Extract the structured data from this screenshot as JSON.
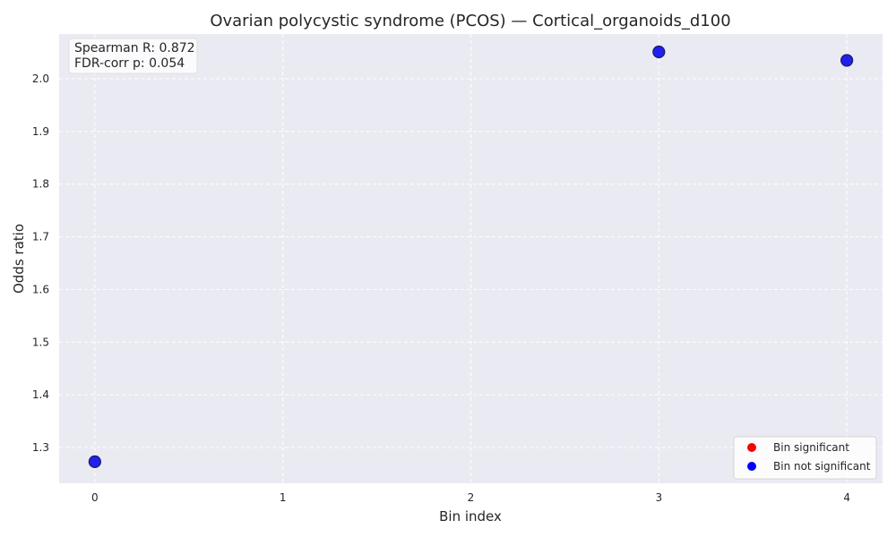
{
  "chart_data": {
    "type": "scatter",
    "title": "Ovarian polycystic syndrome (PCOS) — Cortical_organoids_d100",
    "xlabel": "Bin index",
    "ylabel": "Odds ratio",
    "xlim": [
      -0.19,
      4.19
    ],
    "ylim": [
      1.232,
      2.085
    ],
    "xticks": [
      0,
      1,
      2,
      3,
      4
    ],
    "yticks": [
      1.3,
      1.4,
      1.5,
      1.6,
      1.7,
      1.8,
      1.9,
      2.0
    ],
    "grid": true,
    "points": [
      {
        "x": 0,
        "y": 1.273,
        "significant": false
      },
      {
        "x": 3,
        "y": 2.051,
        "significant": false
      },
      {
        "x": 4,
        "y": 2.035,
        "significant": false
      }
    ],
    "annotation": [
      "Spearman R: 0.872",
      "FDR-corr p: 0.054"
    ],
    "legend": {
      "position": "lower-right",
      "entries": [
        {
          "label": "Bin significant",
          "color": "#ff0000"
        },
        {
          "label": "Bin not significant",
          "color": "#0000ff"
        }
      ]
    },
    "colors": {
      "plot_background": "#eaeaf2",
      "grid": "#ffffff",
      "point_fill": "#2020ee",
      "point_edge": "#1a1a66"
    }
  }
}
